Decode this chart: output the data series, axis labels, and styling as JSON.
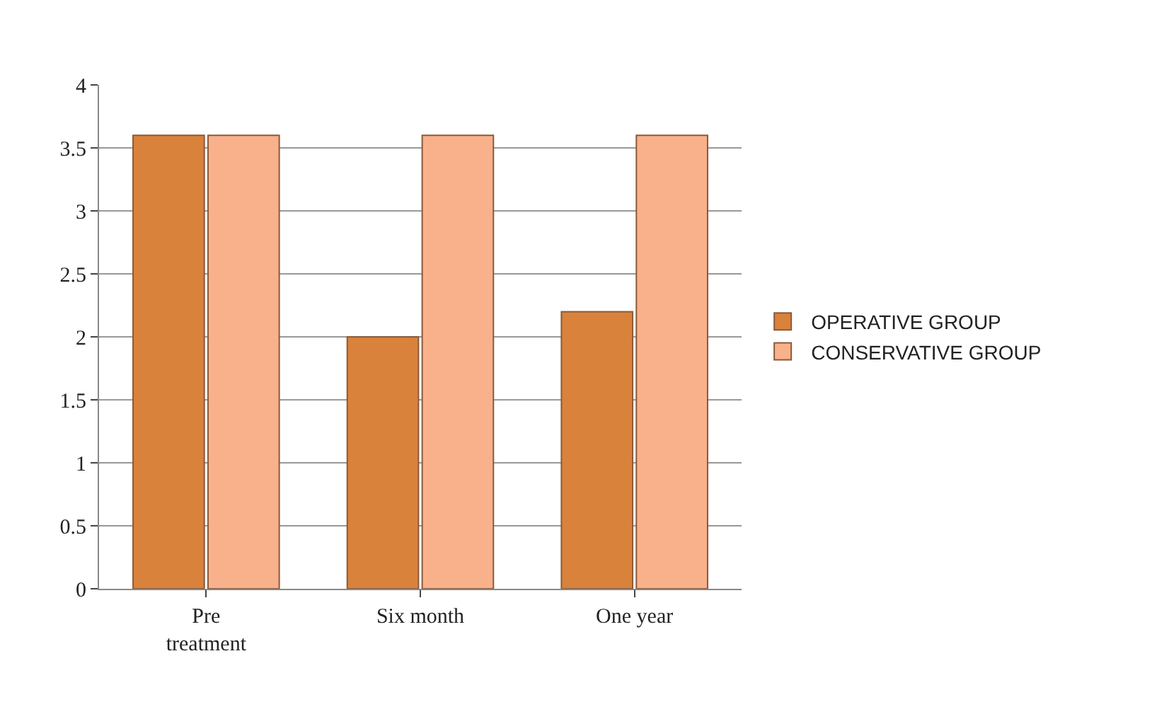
{
  "chart_data": {
    "type": "bar",
    "categories": [
      "Pre\ntreatment",
      "Six month",
      "One year"
    ],
    "series": [
      {
        "name": "OPERATIVE GROUP",
        "color": "#d9823b",
        "values": [
          3.6,
          2.0,
          2.2
        ]
      },
      {
        "name": "CONSERVATIVE GROUP",
        "color": "#f9b18b",
        "values": [
          3.6,
          3.6,
          3.6
        ]
      }
    ],
    "ylim": [
      0,
      4
    ],
    "yticks": [
      0,
      0.5,
      1,
      1.5,
      2,
      2.5,
      3,
      3.5,
      4
    ],
    "grid": "y",
    "legend": "right"
  }
}
